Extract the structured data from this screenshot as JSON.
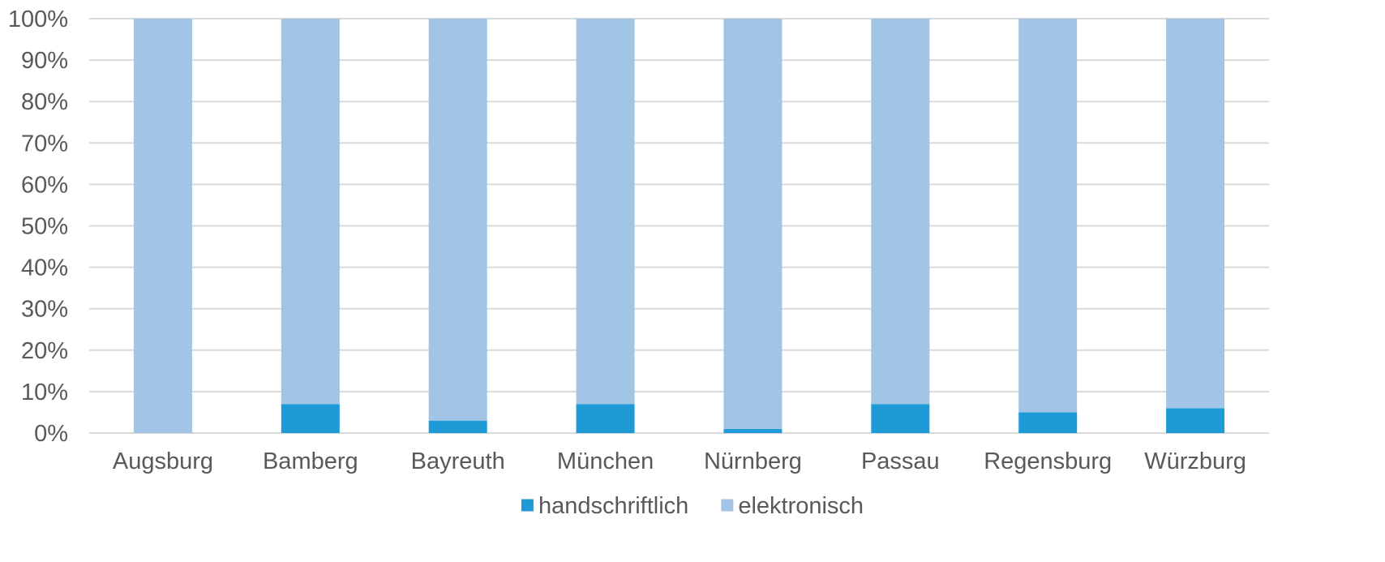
{
  "chart_data": {
    "type": "bar",
    "stacked": true,
    "percent": true,
    "categories": [
      "Augsburg",
      "Bamberg",
      "Bayreuth",
      "München",
      "Nürnberg",
      "Passau",
      "Regensburg",
      "Würzburg"
    ],
    "series": [
      {
        "name": "handschriftlich",
        "color": "#1e9ad6",
        "values": [
          0,
          7,
          3,
          7,
          1,
          7,
          5,
          6
        ]
      },
      {
        "name": "elektronisch",
        "color": "#a2c5e6",
        "values": [
          100,
          93,
          97,
          93,
          99,
          93,
          95,
          94
        ]
      }
    ],
    "yticks": [
      "0%",
      "10%",
      "20%",
      "30%",
      "40%",
      "50%",
      "60%",
      "70%",
      "80%",
      "90%",
      "100%"
    ],
    "ylim": [
      0,
      100
    ],
    "grid": true,
    "legend_position": "bottom",
    "gridline_color": "#d9d9d9",
    "axis_color": "#d9d9d9"
  }
}
